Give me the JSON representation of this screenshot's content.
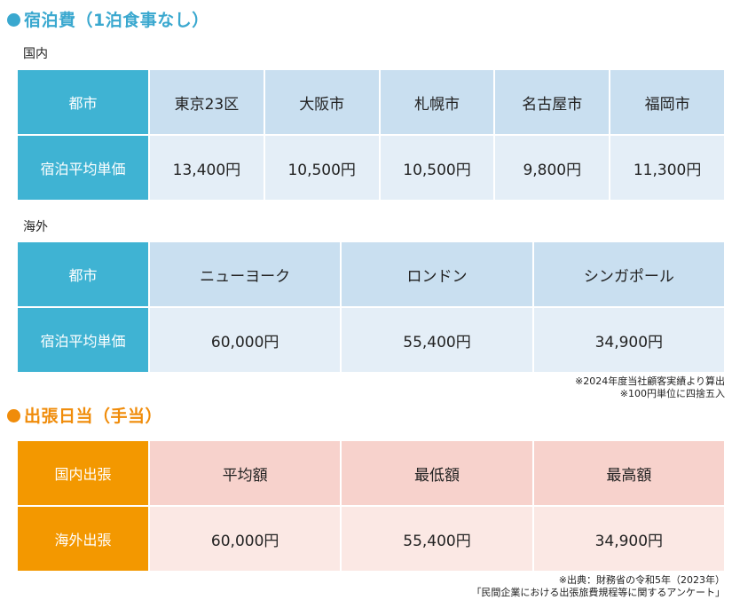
{
  "lodging": {
    "title": "宿泊費（1泊食事なし）",
    "domestic": {
      "label": "国内",
      "header_label": "都市",
      "row_label": "宿泊平均単価",
      "cities": [
        "東京23区",
        "大阪市",
        "札幌市",
        "名古屋市",
        "福岡市"
      ],
      "prices": [
        "13,400円",
        "10,500円",
        "10,500円",
        "9,800円",
        "11,300円"
      ]
    },
    "overseas": {
      "label": "海外",
      "header_label": "都市",
      "row_label": "宿泊平均単価",
      "cities": [
        "ニューヨーク",
        "ロンドン",
        "シンガポール"
      ],
      "prices": [
        "60,000円",
        "55,400円",
        "34,900円"
      ]
    },
    "notes": [
      "※2024年度当社顧客実績より算出",
      "※100円単位に四捨五入"
    ]
  },
  "allowance": {
    "title": "出張日当（手当）",
    "header_label": "国内出張",
    "row_label": "海外出張",
    "columns": [
      "平均額",
      "最低額",
      "最高額"
    ],
    "values": [
      "60,000円",
      "55,400円",
      "34,900円"
    ],
    "notes": [
      "※出典：財務省の令和5年（2023年）",
      "「民間企業における出張旅費規程等に関するアンケート」"
    ]
  },
  "colors": {
    "lodging_accent": "#3aa8cf",
    "allowance_accent": "#f08c0a"
  }
}
